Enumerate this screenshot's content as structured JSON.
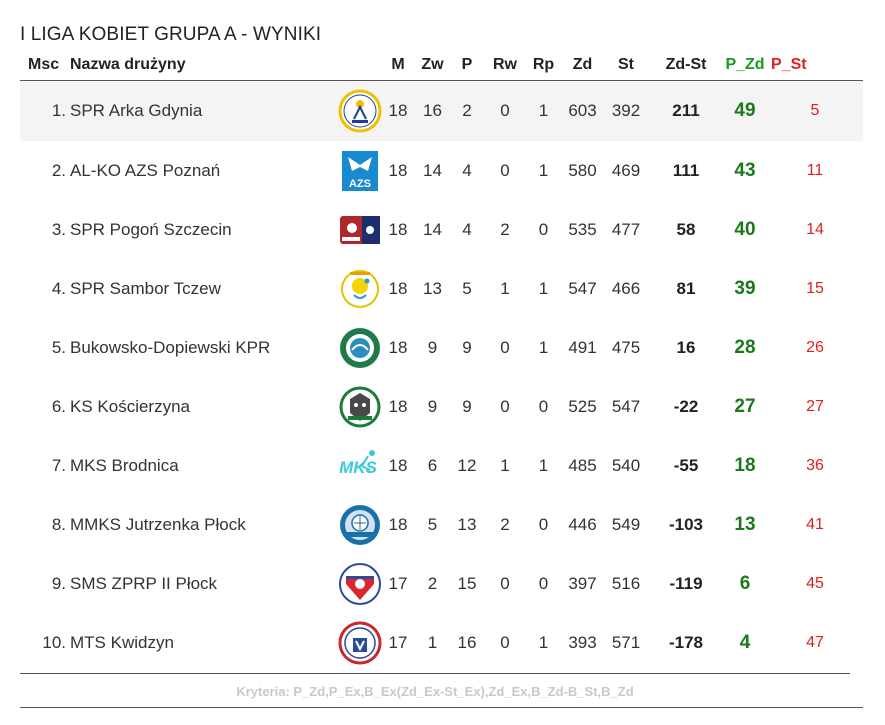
{
  "title": "I LIGA KOBIET GRUPA A - WYNIKI",
  "columns": {
    "msc": "Msc",
    "name": "Nazwa drużyny",
    "m": "M",
    "zw": "Zw",
    "p": "P",
    "rw": "Rw",
    "rp": "Rp",
    "zd": "Zd",
    "st": "St",
    "zdst": "Zd-St",
    "pzd": "P_Zd",
    "pst": "P_St"
  },
  "rows": [
    {
      "msc": "1.",
      "name": "SPR Arka Gdynia",
      "logo": "arka-gdynia-logo",
      "m": "18",
      "zw": "16",
      "p": "2",
      "rw": "0",
      "rp": "1",
      "zd": "603",
      "st": "392",
      "zdst": "211",
      "pzd": "49",
      "pst": "5"
    },
    {
      "msc": "2.",
      "name": "AL-KO AZS Poznań",
      "logo": "azs-poznan-logo",
      "m": "18",
      "zw": "14",
      "p": "4",
      "rw": "0",
      "rp": "1",
      "zd": "580",
      "st": "469",
      "zdst": "111",
      "pzd": "43",
      "pst": "11"
    },
    {
      "msc": "3.",
      "name": "SPR Pogoń Szczecin",
      "logo": "pogon-szczecin-logo",
      "m": "18",
      "zw": "14",
      "p": "4",
      "rw": "2",
      "rp": "0",
      "zd": "535",
      "st": "477",
      "zdst": "58",
      "pzd": "40",
      "pst": "14"
    },
    {
      "msc": "4.",
      "name": "SPR Sambor Tczew",
      "logo": "sambor-tczew-logo",
      "m": "18",
      "zw": "13",
      "p": "5",
      "rw": "1",
      "rp": "1",
      "zd": "547",
      "st": "466",
      "zdst": "81",
      "pzd": "39",
      "pst": "15"
    },
    {
      "msc": "5.",
      "name": "Bukowsko-Dopiewski KPR",
      "logo": "bukowsko-dopiewski-logo",
      "m": "18",
      "zw": "9",
      "p": "9",
      "rw": "0",
      "rp": "1",
      "zd": "491",
      "st": "475",
      "zdst": "16",
      "pzd": "28",
      "pst": "26"
    },
    {
      "msc": "6.",
      "name": "KS Kościerzyna",
      "logo": "koscierzyna-logo",
      "m": "18",
      "zw": "9",
      "p": "9",
      "rw": "0",
      "rp": "0",
      "zd": "525",
      "st": "547",
      "zdst": "-22",
      "pzd": "27",
      "pst": "27"
    },
    {
      "msc": "7.",
      "name": "MKS Brodnica",
      "logo": "brodnica-logo",
      "m": "18",
      "zw": "6",
      "p": "12",
      "rw": "1",
      "rp": "1",
      "zd": "485",
      "st": "540",
      "zdst": "-55",
      "pzd": "18",
      "pst": "36"
    },
    {
      "msc": "8.",
      "name": "MMKS Jutrzenka Płock",
      "logo": "jutrzenka-plock-logo",
      "m": "18",
      "zw": "5",
      "p": "13",
      "rw": "2",
      "rp": "0",
      "zd": "446",
      "st": "549",
      "zdst": "-103",
      "pzd": "13",
      "pst": "41"
    },
    {
      "msc": "9.",
      "name": "SMS ZPRP II Płock",
      "logo": "sms-zprp-logo",
      "m": "17",
      "zw": "2",
      "p": "15",
      "rw": "0",
      "rp": "0",
      "zd": "397",
      "st": "516",
      "zdst": "-119",
      "pzd": "6",
      "pst": "45"
    },
    {
      "msc": "10.",
      "name": "MTS Kwidzyn",
      "logo": "mts-kwidzyn-logo",
      "m": "17",
      "zw": "1",
      "p": "16",
      "rw": "0",
      "rp": "1",
      "zd": "393",
      "st": "571",
      "zdst": "-178",
      "pzd": "4",
      "pst": "47"
    }
  ],
  "footer": "Kryteria: P_Zd,P_Ex,B_Ex(Zd_Ex-St_Ex),Zd_Ex,B_Zd-B_St,B_Zd",
  "colors": {
    "points_for": "#1a7a1a",
    "points_against": "#e02020",
    "shaded_row": "#f4f4f4"
  }
}
